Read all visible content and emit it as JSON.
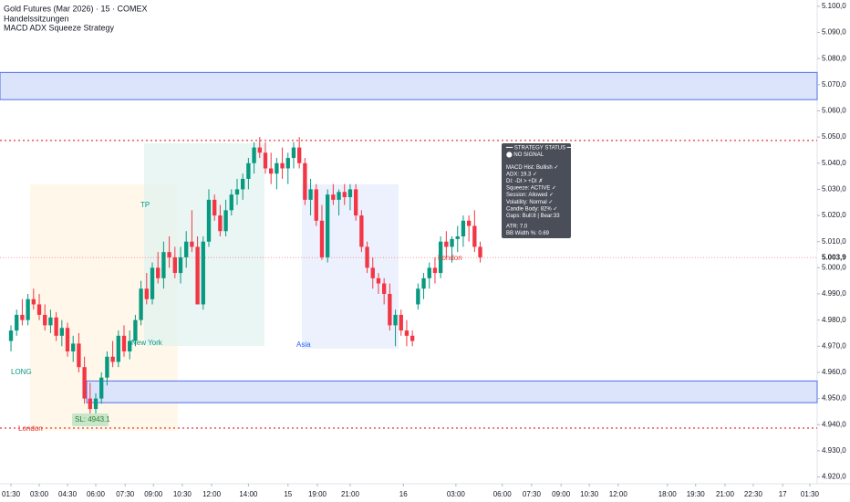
{
  "chart_data": {
    "type": "candlestick",
    "title": "Gold Futures (Mar 2026) · 15 · COMEX",
    "subtitles": [
      "Handelssitzungen",
      "MACD ADX Squeeze Strategy"
    ],
    "up_color": "#089981",
    "down_color": "#f23645",
    "candles": [
      [
        4972,
        4978,
        4968,
        4976
      ],
      [
        4976,
        4984,
        4974,
        4982
      ],
      [
        4982,
        4988,
        4978,
        4980
      ],
      [
        4980,
        4990,
        4978,
        4988
      ],
      [
        4988,
        4992,
        4984,
        4986
      ],
      [
        4986,
        4990,
        4980,
        4982
      ],
      [
        4982,
        4986,
        4976,
        4978
      ],
      [
        4978,
        4984,
        4975,
        4981
      ],
      [
        4981,
        4983,
        4972,
        4974
      ],
      [
        4974,
        4980,
        4970,
        4977
      ],
      [
        4977,
        4979,
        4966,
        4968
      ],
      [
        4968,
        4974,
        4964,
        4971
      ],
      [
        4971,
        4975,
        4960,
        4962
      ],
      [
        4962,
        4966,
        4948,
        4950
      ],
      [
        4950,
        4956,
        4944,
        4946
      ],
      [
        4946,
        4952,
        4942,
        4950
      ],
      [
        4950,
        4960,
        4948,
        4958
      ],
      [
        4958,
        4968,
        4955,
        4966
      ],
      [
        4966,
        4972,
        4962,
        4964
      ],
      [
        4964,
        4976,
        4962,
        4974
      ],
      [
        4974,
        4978,
        4966,
        4968
      ],
      [
        4968,
        4976,
        4965,
        4972
      ],
      [
        4972,
        4982,
        4970,
        4980
      ],
      [
        4980,
        4995,
        4978,
        4992
      ],
      [
        4992,
        4998,
        4986,
        4988
      ],
      [
        4988,
        5002,
        4986,
        5000
      ],
      [
        5000,
        5006,
        4994,
        4996
      ],
      [
        4996,
        5010,
        4992,
        5006
      ],
      [
        5006,
        5012,
        5000,
        5004
      ],
      [
        5004,
        5008,
        4996,
        4998
      ],
      [
        4998,
        5008,
        4994,
        5004
      ],
      [
        5004,
        5014,
        5000,
        5010
      ],
      [
        5010,
        5022,
        5006,
        5008
      ],
      [
        5008,
        5012,
        4986,
        4986
      ],
      [
        4986,
        5012,
        4984,
        5010
      ],
      [
        5010,
        5030,
        5008,
        5026
      ],
      [
        5026,
        5028,
        5018,
        5020
      ],
      [
        5020,
        5024,
        5012,
        5014
      ],
      [
        5014,
        5026,
        5012,
        5022
      ],
      [
        5022,
        5030,
        5020,
        5028
      ],
      [
        5028,
        5034,
        5024,
        5030
      ],
      [
        5030,
        5036,
        5026,
        5034
      ],
      [
        5034,
        5042,
        5030,
        5040
      ],
      [
        5040,
        5048,
        5036,
        5046
      ],
      [
        5046,
        5050,
        5042,
        5044
      ],
      [
        5044,
        5048,
        5036,
        5038
      ],
      [
        5038,
        5044,
        5032,
        5036
      ],
      [
        5036,
        5042,
        5030,
        5040
      ],
      [
        5040,
        5046,
        5034,
        5038
      ],
      [
        5038,
        5044,
        5032,
        5042
      ],
      [
        5042,
        5048,
        5038,
        5046
      ],
      [
        5046,
        5050,
        5038,
        5040
      ],
      [
        5040,
        5042,
        5024,
        5026
      ],
      [
        5026,
        5034,
        5020,
        5030
      ],
      [
        5030,
        5032,
        5016,
        5018
      ],
      [
        5018,
        5024,
        5003,
        5004
      ],
      [
        5004,
        5030,
        5002,
        5028
      ],
      [
        5028,
        5032,
        5024,
        5026
      ],
      [
        5026,
        5030,
        5020,
        5029
      ],
      [
        5029,
        5032,
        5024,
        5027
      ],
      [
        5027,
        5032,
        5022,
        5030
      ],
      [
        5030,
        5032,
        5018,
        5020
      ],
      [
        5020,
        5022,
        5006,
        5008
      ],
      [
        5008,
        5010,
        4998,
        5000
      ],
      [
        5000,
        5004,
        4992,
        4996
      ],
      [
        4996,
        4998,
        4990,
        4994
      ],
      [
        4994,
        4996,
        4986,
        4990
      ],
      [
        4990,
        4994,
        4976,
        4978
      ],
      [
        4978,
        4984,
        4970,
        4982
      ],
      [
        4982,
        4984,
        4974,
        4976
      ],
      [
        4976,
        4980,
        4970,
        4974
      ],
      [
        4974,
        4976,
        4970,
        4972
      ],
      [
        4986,
        4994,
        4984,
        4992
      ],
      [
        4992,
        4998,
        4988,
        4996
      ],
      [
        4996,
        5002,
        4992,
        5000
      ],
      [
        5000,
        5004,
        4994,
        4998
      ],
      [
        4998,
        5012,
        4996,
        5010
      ],
      [
        5010,
        5014,
        5004,
        5008
      ],
      [
        5008,
        5012,
        5002,
        5011
      ],
      [
        5011,
        5016,
        5006,
        5012
      ],
      [
        5012,
        5020,
        5008,
        5018
      ],
      [
        5018,
        5020,
        5010,
        5016
      ],
      [
        5016,
        5022,
        5006,
        5008
      ],
      [
        5008,
        5010,
        5002,
        5004
      ]
    ],
    "xlim": [
      -1.94,
      142.6
    ],
    "xticks": [
      {
        "value": 0,
        "label": "01:30"
      },
      {
        "value": 5,
        "label": "03:00"
      },
      {
        "value": 10,
        "label": "04:30"
      },
      {
        "value": 15,
        "label": "06:00"
      },
      {
        "value": 20.2,
        "label": "07:30"
      },
      {
        "value": 25.2,
        "label": "09:00"
      },
      {
        "value": 30.3,
        "label": "10:30"
      },
      {
        "value": 35.5,
        "label": "12:00"
      },
      {
        "value": 42,
        "label": "14:00"
      },
      {
        "value": 49,
        "label": "15"
      },
      {
        "value": 54.2,
        "label": "19:00"
      },
      {
        "value": 60,
        "label": "21:00"
      },
      {
        "value": 69.4,
        "label": "16"
      },
      {
        "value": 78.7,
        "label": "03:00"
      },
      {
        "value": 86.9,
        "label": "06:00"
      },
      {
        "value": 92.1,
        "label": "07:30"
      },
      {
        "value": 97.3,
        "label": "09:00"
      },
      {
        "value": 102.3,
        "label": "10:30"
      },
      {
        "value": 107.4,
        "label": "12:00"
      },
      {
        "value": 116.1,
        "label": "18:00"
      },
      {
        "value": 121.1,
        "label": "19:30"
      },
      {
        "value": 126.3,
        "label": "21:00"
      },
      {
        "value": 131.3,
        "label": "22:30"
      },
      {
        "value": 136.5,
        "label": "17"
      },
      {
        "value": 141.3,
        "label": "01:30"
      }
    ],
    "ylim": [
      4917.4,
      5102.4
    ],
    "yticks": [
      {
        "value": 4920,
        "label": "4.920,0"
      },
      {
        "value": 4930,
        "label": "4.930,0"
      },
      {
        "value": 4940,
        "label": "4.940,0"
      },
      {
        "value": 4950,
        "label": "4.950,0"
      },
      {
        "value": 4960,
        "label": "4.960,0"
      },
      {
        "value": 4970,
        "label": "4.970,0"
      },
      {
        "value": 4980,
        "label": "4.980,0"
      },
      {
        "value": 4990,
        "label": "4.990,0"
      },
      {
        "value": 5000,
        "label": "5.000,0"
      },
      {
        "value": 5010,
        "label": "5.010,0"
      },
      {
        "value": 5020,
        "label": "5.020,0"
      },
      {
        "value": 5030,
        "label": "5.030,0"
      },
      {
        "value": 5040,
        "label": "5.040,0"
      },
      {
        "value": 5050,
        "label": "5.050,0"
      },
      {
        "value": 5060,
        "label": "5.060,0"
      },
      {
        "value": 5070,
        "label": "5.070,0"
      },
      {
        "value": 5080,
        "label": "5.080,0"
      },
      {
        "value": 5090,
        "label": "5.090,0"
      },
      {
        "value": 5100,
        "label": "5.100,0"
      }
    ],
    "last_price": {
      "value": 5003.9,
      "label": "5.003,9"
    },
    "zones": [
      [
        5064.3,
        5074.7
      ],
      [
        4948.4,
        4956.7
      ]
    ],
    "red_levels": [
      5048.7,
      4938.7
    ],
    "annotations": [
      "LONG",
      "TP",
      "New York",
      "Asia",
      "London",
      "London",
      "SL: 4943.1"
    ],
    "status_panel": [
      "━━ STRATEGY STATUS ━━",
      "⬤ NO SIGNAL",
      "MACD Hist: Bullish ✓",
      "ADX: 19.3 ✓",
      "DI: -DI > +DI ✗",
      "Squeeze: ACTIVE ✓",
      "Session: Allowed ✓",
      "Volatility: Normal ✓",
      "Candle Body: 82% ✓",
      "Gaps: Bull:8 | Bear:33",
      "ATR: 7.0",
      "BB Width %: 0.69"
    ]
  }
}
